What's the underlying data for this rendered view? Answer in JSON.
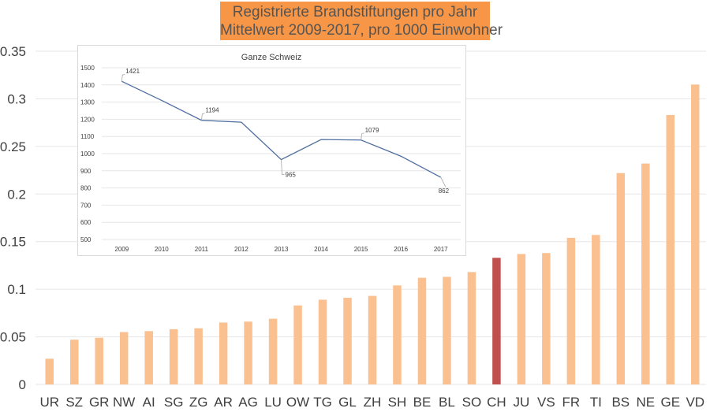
{
  "chart_data": [
    {
      "type": "bar",
      "title": "Registrierte Brandstiftungen pro Jahr",
      "subtitle": "Mittelwert 2009-2017, pro 1000 Einwohner",
      "xlabel": "",
      "ylabel": "",
      "ylim": [
        0,
        0.35
      ],
      "yticks": [
        "0",
        "0.05",
        "0.1",
        "0.15",
        "0.2",
        "0.25",
        "0.3",
        "0.35"
      ],
      "yticks_values": [
        0,
        0.05,
        0.1,
        0.15,
        0.2,
        0.25,
        0.3,
        0.35
      ],
      "grid": true,
      "categories": [
        "UR",
        "SZ",
        "GR",
        "NW",
        "AI",
        "SG",
        "ZG",
        "AR",
        "AG",
        "LU",
        "OW",
        "TG",
        "GL",
        "ZH",
        "SH",
        "BE",
        "BL",
        "SO",
        "CH",
        "JU",
        "VS",
        "FR",
        "TI",
        "BS",
        "NE",
        "GE",
        "VD"
      ],
      "values": [
        0.027,
        0.047,
        0.049,
        0.055,
        0.056,
        0.058,
        0.059,
        0.065,
        0.066,
        0.069,
        0.083,
        0.089,
        0.091,
        0.093,
        0.104,
        0.112,
        0.113,
        0.118,
        0.133,
        0.137,
        0.138,
        0.154,
        0.157,
        0.222,
        0.232,
        0.283,
        0.315
      ],
      "highlight_category": "CH",
      "colors": {
        "bar": "#fac090",
        "highlight": "#c0504d",
        "title_bg": "#f79646",
        "grid": "#e6e6e6"
      }
    },
    {
      "type": "line",
      "title": "Ganze Schweiz",
      "xlabel": "",
      "ylabel": "",
      "ylim": [
        500,
        1500
      ],
      "yticks": [
        "500",
        "600",
        "700",
        "800",
        "900",
        "1000",
        "1100",
        "1200",
        "1300",
        "1400",
        "1500"
      ],
      "yticks_values": [
        500,
        600,
        700,
        800,
        900,
        1000,
        1100,
        1200,
        1300,
        1400,
        1500
      ],
      "grid": true,
      "x": [
        "2009",
        "2010",
        "2011",
        "2012",
        "2013",
        "2014",
        "2015",
        "2016",
        "2017"
      ],
      "series": [
        {
          "name": "Ganze Schweiz",
          "values": [
            1421,
            1310,
            1194,
            1183,
            965,
            1082,
            1079,
            985,
            862
          ]
        }
      ],
      "data_labels": [
        {
          "x": "2009",
          "text": "1421"
        },
        {
          "x": "2011",
          "text": "1194"
        },
        {
          "x": "2013",
          "text": "965"
        },
        {
          "x": "2015",
          "text": "1079"
        },
        {
          "x": "2017",
          "text": "862"
        }
      ],
      "colors": {
        "line": "#4f6f9f",
        "grid": "#e6e6e6"
      }
    }
  ]
}
